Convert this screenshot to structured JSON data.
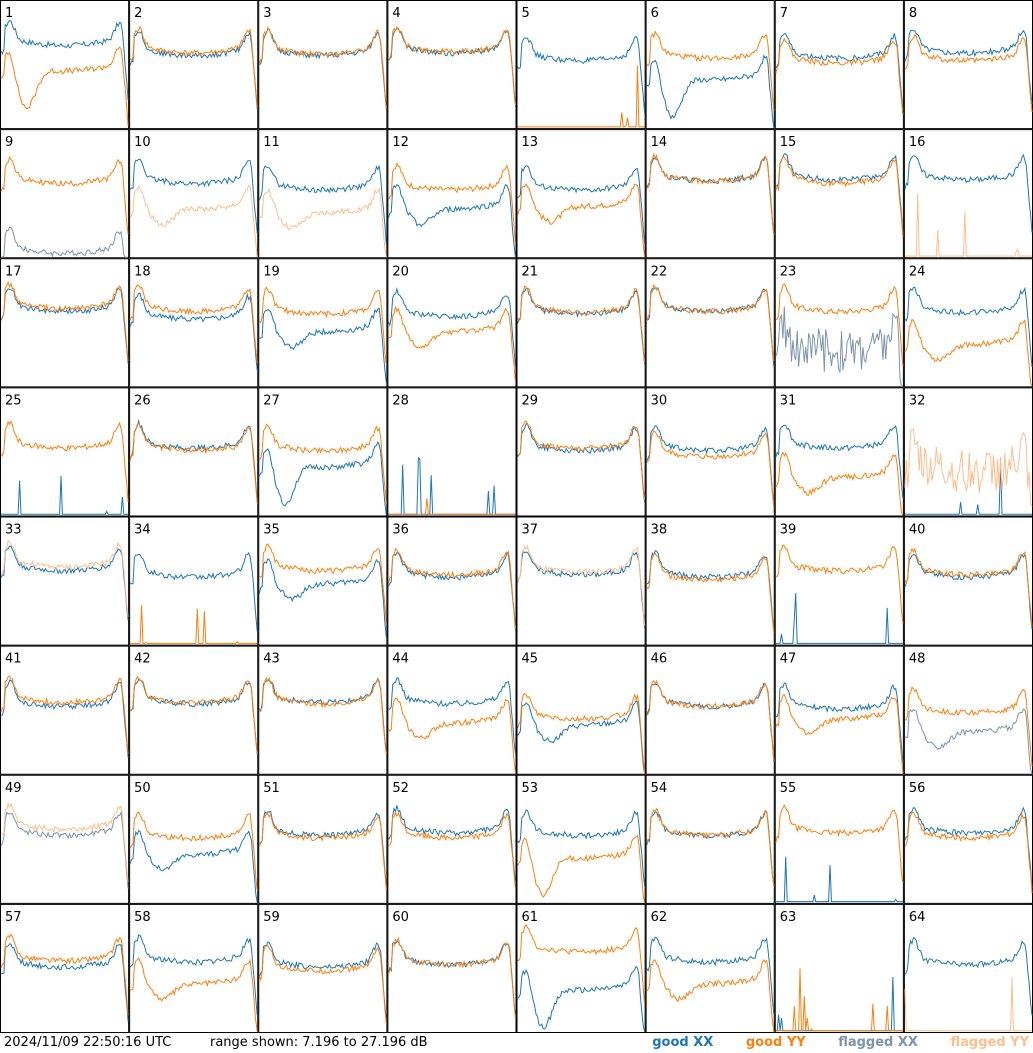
{
  "footer": {
    "timestamp": "2024/11/09 22:50:16 UTC",
    "range_text": "range shown: 7.196 to 27.196 dB"
  },
  "legend": [
    {
      "key": "good_xx",
      "prefix": "good",
      "suffix": "XX",
      "color": "#1f77b4"
    },
    {
      "key": "good_yy",
      "prefix": "good",
      "suffix": "YY",
      "color": "#ff7f0e"
    },
    {
      "key": "flagged_xx",
      "prefix": "flagged",
      "suffix": "XX",
      "color": "#7f93aa"
    },
    {
      "key": "flagged_yy",
      "prefix": "flagged",
      "suffix": "YY",
      "color": "#fdbf8f"
    }
  ],
  "chart_data": {
    "type": "line",
    "layout": "8x8 small multiples",
    "y_range_db": [
      7.196,
      27.196
    ],
    "ylim": [
      7.196,
      27.196
    ],
    "colors": {
      "good_xx": "#1f77b4",
      "good_yy": "#ff7f0e",
      "flagged_xx": "#7f93aa",
      "flagged_yy": "#fdbf8f"
    },
    "panels": [
      {
        "id": "1",
        "xx": "good",
        "yy": "good",
        "xx_shape": "normal",
        "yy_shape": "dip",
        "xx_level": 0.72,
        "yy_level": 0.52
      },
      {
        "id": "2",
        "xx": "good",
        "yy": "good",
        "xx_shape": "normal",
        "yy_shape": "normal",
        "xx_level": 0.64,
        "yy_level": 0.66
      },
      {
        "id": "3",
        "xx": "good",
        "yy": "good",
        "xx_shape": "normal",
        "yy_shape": "normal",
        "xx_level": 0.64,
        "yy_level": 0.65
      },
      {
        "id": "4",
        "xx": "good",
        "yy": "good",
        "xx_shape": "normal",
        "yy_shape": "normal",
        "xx_level": 0.66,
        "yy_level": 0.67
      },
      {
        "id": "5",
        "xx": "good",
        "yy": "good",
        "xx_shape": "normal",
        "yy_shape": "dead",
        "xx_level": 0.6,
        "yy_level": 0.0
      },
      {
        "id": "6",
        "xx": "good",
        "yy": "good",
        "xx_shape": "dip",
        "yy_shape": "normal",
        "xx_level": 0.45,
        "yy_level": 0.62
      },
      {
        "id": "7",
        "xx": "good",
        "yy": "good",
        "xx_shape": "normal",
        "yy_shape": "normal",
        "xx_level": 0.62,
        "yy_level": 0.58
      },
      {
        "id": "8",
        "xx": "good",
        "yy": "good",
        "xx_shape": "normal",
        "yy_shape": "normal",
        "xx_level": 0.66,
        "yy_level": 0.6
      },
      {
        "id": "9",
        "xx": "flagged",
        "yy": "good",
        "xx_shape": "spiky",
        "yy_shape": "normal",
        "xx_level": 0.1,
        "yy_level": 0.65
      },
      {
        "id": "10",
        "xx": "good",
        "yy": "flagged",
        "xx_shape": "normal",
        "yy_shape": "sag",
        "xx_level": 0.65,
        "yy_level": 0.45
      },
      {
        "id": "11",
        "xx": "good",
        "yy": "flagged",
        "xx_shape": "normal",
        "yy_shape": "sag",
        "xx_level": 0.6,
        "yy_level": 0.42
      },
      {
        "id": "12",
        "xx": "good",
        "yy": "good",
        "xx_shape": "sag",
        "yy_shape": "normal",
        "xx_level": 0.45,
        "yy_level": 0.6
      },
      {
        "id": "13",
        "xx": "good",
        "yy": "good",
        "xx_shape": "normal",
        "yy_shape": "sag",
        "xx_level": 0.6,
        "yy_level": 0.47
      },
      {
        "id": "14",
        "xx": "good",
        "yy": "good",
        "xx_shape": "normal",
        "yy_shape": "normal",
        "xx_level": 0.67,
        "yy_level": 0.67
      },
      {
        "id": "15",
        "xx": "good",
        "yy": "good",
        "xx_shape": "normal",
        "yy_shape": "normal",
        "xx_level": 0.68,
        "yy_level": 0.65
      },
      {
        "id": "16",
        "xx": "good",
        "yy": "flagged",
        "xx_shape": "normal",
        "yy_shape": "dead",
        "xx_level": 0.68,
        "yy_level": 0.0
      },
      {
        "id": "17",
        "xx": "good",
        "yy": "good",
        "xx_shape": "normal",
        "yy_shape": "normal",
        "xx_level": 0.66,
        "yy_level": 0.68
      },
      {
        "id": "18",
        "xx": "good",
        "yy": "good",
        "xx_shape": "normal",
        "yy_shape": "normal",
        "xx_level": 0.6,
        "yy_level": 0.66
      },
      {
        "id": "19",
        "xx": "good",
        "yy": "good",
        "xx_shape": "sag",
        "yy_shape": "normal",
        "xx_level": 0.5,
        "yy_level": 0.64
      },
      {
        "id": "20",
        "xx": "good",
        "yy": "good",
        "xx_shape": "normal",
        "yy_shape": "sag",
        "xx_level": 0.62,
        "yy_level": 0.5
      },
      {
        "id": "21",
        "xx": "good",
        "yy": "good",
        "xx_shape": "normal",
        "yy_shape": "normal",
        "xx_level": 0.64,
        "yy_level": 0.65
      },
      {
        "id": "22",
        "xx": "good",
        "yy": "good",
        "xx_shape": "normal",
        "yy_shape": "normal",
        "xx_level": 0.66,
        "yy_level": 0.66
      },
      {
        "id": "23",
        "xx": "flagged",
        "yy": "good",
        "xx_shape": "noisy",
        "yy_shape": "normal",
        "xx_level": 0.35,
        "yy_level": 0.66
      },
      {
        "id": "24",
        "xx": "good",
        "yy": "good",
        "xx_shape": "normal",
        "yy_shape": "sag",
        "xx_level": 0.65,
        "yy_level": 0.4
      },
      {
        "id": "25",
        "xx": "good",
        "yy": "good",
        "xx_shape": "dead",
        "yy_shape": "normal",
        "xx_level": 0.0,
        "yy_level": 0.6
      },
      {
        "id": "26",
        "xx": "good",
        "yy": "good",
        "xx_shape": "normal",
        "yy_shape": "normal",
        "xx_level": 0.6,
        "yy_level": 0.58
      },
      {
        "id": "27",
        "xx": "good",
        "yy": "good",
        "xx_shape": "dip",
        "yy_shape": "normal",
        "xx_level": 0.45,
        "yy_level": 0.58
      },
      {
        "id": "28",
        "xx": "good",
        "yy": "good",
        "xx_shape": "dead",
        "yy_shape": "dead",
        "xx_level": 0.0,
        "yy_level": 0.0
      },
      {
        "id": "29",
        "xx": "good",
        "yy": "good",
        "xx_shape": "normal",
        "yy_shape": "normal",
        "xx_level": 0.58,
        "yy_level": 0.6
      },
      {
        "id": "30",
        "xx": "good",
        "yy": "good",
        "xx_shape": "normal",
        "yy_shape": "normal",
        "xx_level": 0.58,
        "yy_level": 0.53
      },
      {
        "id": "31",
        "xx": "good",
        "yy": "good",
        "xx_shape": "normal",
        "yy_shape": "sag",
        "xx_level": 0.6,
        "yy_level": 0.37
      },
      {
        "id": "32",
        "xx": "good",
        "yy": "flagged",
        "xx_shape": "dead",
        "yy_shape": "noisy",
        "xx_level": 0.0,
        "yy_level": 0.42
      },
      {
        "id": "33",
        "xx": "good",
        "yy": "flagged",
        "xx_shape": "normal",
        "yy_shape": "normal",
        "xx_level": 0.65,
        "yy_level": 0.68
      },
      {
        "id": "34",
        "xx": "good",
        "yy": "good",
        "xx_shape": "normal",
        "yy_shape": "dead",
        "xx_level": 0.6,
        "yy_level": 0.0
      },
      {
        "id": "35",
        "xx": "good",
        "yy": "good",
        "xx_shape": "sag",
        "yy_shape": "normal",
        "xx_level": 0.55,
        "yy_level": 0.65
      },
      {
        "id": "36",
        "xx": "good",
        "yy": "good",
        "xx_shape": "normal",
        "yy_shape": "normal",
        "xx_level": 0.6,
        "yy_level": 0.62
      },
      {
        "id": "37",
        "xx": "good",
        "yy": "flagged",
        "xx_shape": "normal",
        "yy_shape": "normal",
        "xx_level": 0.62,
        "yy_level": 0.64
      },
      {
        "id": "38",
        "xx": "good",
        "yy": "good",
        "xx_shape": "normal",
        "yy_shape": "normal",
        "xx_level": 0.6,
        "yy_level": 0.58
      },
      {
        "id": "39",
        "xx": "good",
        "yy": "good",
        "xx_shape": "dead",
        "yy_shape": "normal",
        "xx_level": 0.0,
        "yy_level": 0.65
      },
      {
        "id": "40",
        "xx": "good",
        "yy": "good",
        "xx_shape": "normal",
        "yy_shape": "normal",
        "xx_level": 0.6,
        "yy_level": 0.62
      },
      {
        "id": "41",
        "xx": "good",
        "yy": "good",
        "xx_shape": "normal",
        "yy_shape": "normal",
        "xx_level": 0.6,
        "yy_level": 0.63
      },
      {
        "id": "42",
        "xx": "good",
        "yy": "good",
        "xx_shape": "normal",
        "yy_shape": "normal",
        "xx_level": 0.62,
        "yy_level": 0.63
      },
      {
        "id": "43",
        "xx": "good",
        "yy": "good",
        "xx_shape": "normal",
        "yy_shape": "normal",
        "xx_level": 0.63,
        "yy_level": 0.62
      },
      {
        "id": "44",
        "xx": "good",
        "yy": "good",
        "xx_shape": "normal",
        "yy_shape": "sag",
        "xx_level": 0.62,
        "yy_level": 0.47
      },
      {
        "id": "45",
        "xx": "good",
        "yy": "good",
        "xx_shape": "sag",
        "yy_shape": "normal",
        "xx_level": 0.45,
        "yy_level": 0.5
      },
      {
        "id": "46",
        "xx": "good",
        "yy": "good",
        "xx_shape": "normal",
        "yy_shape": "normal",
        "xx_level": 0.6,
        "yy_level": 0.6
      },
      {
        "id": "47",
        "xx": "good",
        "yy": "good",
        "xx_shape": "normal",
        "yy_shape": "sag",
        "xx_level": 0.58,
        "yy_level": 0.5
      },
      {
        "id": "48",
        "xx": "flagged",
        "yy": "good",
        "xx_shape": "sag",
        "yy_shape": "normal",
        "xx_level": 0.4,
        "yy_level": 0.55
      },
      {
        "id": "49",
        "xx": "flagged",
        "yy": "flagged",
        "xx_shape": "normal",
        "yy_shape": "normal",
        "xx_level": 0.6,
        "yy_level": 0.65
      },
      {
        "id": "50",
        "xx": "good",
        "yy": "good",
        "xx_shape": "sag",
        "yy_shape": "normal",
        "xx_level": 0.45,
        "yy_level": 0.58
      },
      {
        "id": "51",
        "xx": "good",
        "yy": "good",
        "xx_shape": "normal",
        "yy_shape": "normal",
        "xx_level": 0.6,
        "yy_level": 0.58
      },
      {
        "id": "52",
        "xx": "good",
        "yy": "good",
        "xx_shape": "normal",
        "yy_shape": "normal",
        "xx_level": 0.62,
        "yy_level": 0.58
      },
      {
        "id": "53",
        "xx": "good",
        "yy": "good",
        "xx_shape": "normal",
        "yy_shape": "dip",
        "xx_level": 0.6,
        "yy_level": 0.42
      },
      {
        "id": "54",
        "xx": "good",
        "yy": "good",
        "xx_shape": "normal",
        "yy_shape": "normal",
        "xx_level": 0.6,
        "yy_level": 0.6
      },
      {
        "id": "55",
        "xx": "good",
        "yy": "good",
        "xx_shape": "dead",
        "yy_shape": "normal",
        "xx_level": 0.0,
        "yy_level": 0.62
      },
      {
        "id": "56",
        "xx": "good",
        "yy": "good",
        "xx_shape": "normal",
        "yy_shape": "normal",
        "xx_level": 0.62,
        "yy_level": 0.58
      },
      {
        "id": "57",
        "xx": "good",
        "yy": "good",
        "xx_shape": "normal",
        "yy_shape": "normal",
        "xx_level": 0.58,
        "yy_level": 0.63
      },
      {
        "id": "58",
        "xx": "good",
        "yy": "good",
        "xx_shape": "normal",
        "yy_shape": "sag",
        "xx_level": 0.62,
        "yy_level": 0.45
      },
      {
        "id": "59",
        "xx": "good",
        "yy": "good",
        "xx_shape": "normal",
        "yy_shape": "normal",
        "xx_level": 0.58,
        "yy_level": 0.55
      },
      {
        "id": "60",
        "xx": "good",
        "yy": "good",
        "xx_shape": "normal",
        "yy_shape": "normal",
        "xx_level": 0.6,
        "yy_level": 0.6
      },
      {
        "id": "61",
        "xx": "good",
        "yy": "good",
        "xx_shape": "dip",
        "yy_shape": "normal",
        "xx_level": 0.4,
        "yy_level": 0.7
      },
      {
        "id": "62",
        "xx": "good",
        "yy": "good",
        "xx_shape": "normal",
        "yy_shape": "sag",
        "xx_level": 0.62,
        "yy_level": 0.45
      },
      {
        "id": "63",
        "xx": "good",
        "yy": "good",
        "xx_shape": "dead",
        "yy_shape": "dead",
        "xx_level": 0.0,
        "yy_level": 0.0
      },
      {
        "id": "64",
        "xx": "good",
        "yy": "flagged",
        "xx_shape": "normal",
        "yy_shape": "dead",
        "xx_level": 0.6,
        "yy_level": 0.0
      }
    ]
  }
}
